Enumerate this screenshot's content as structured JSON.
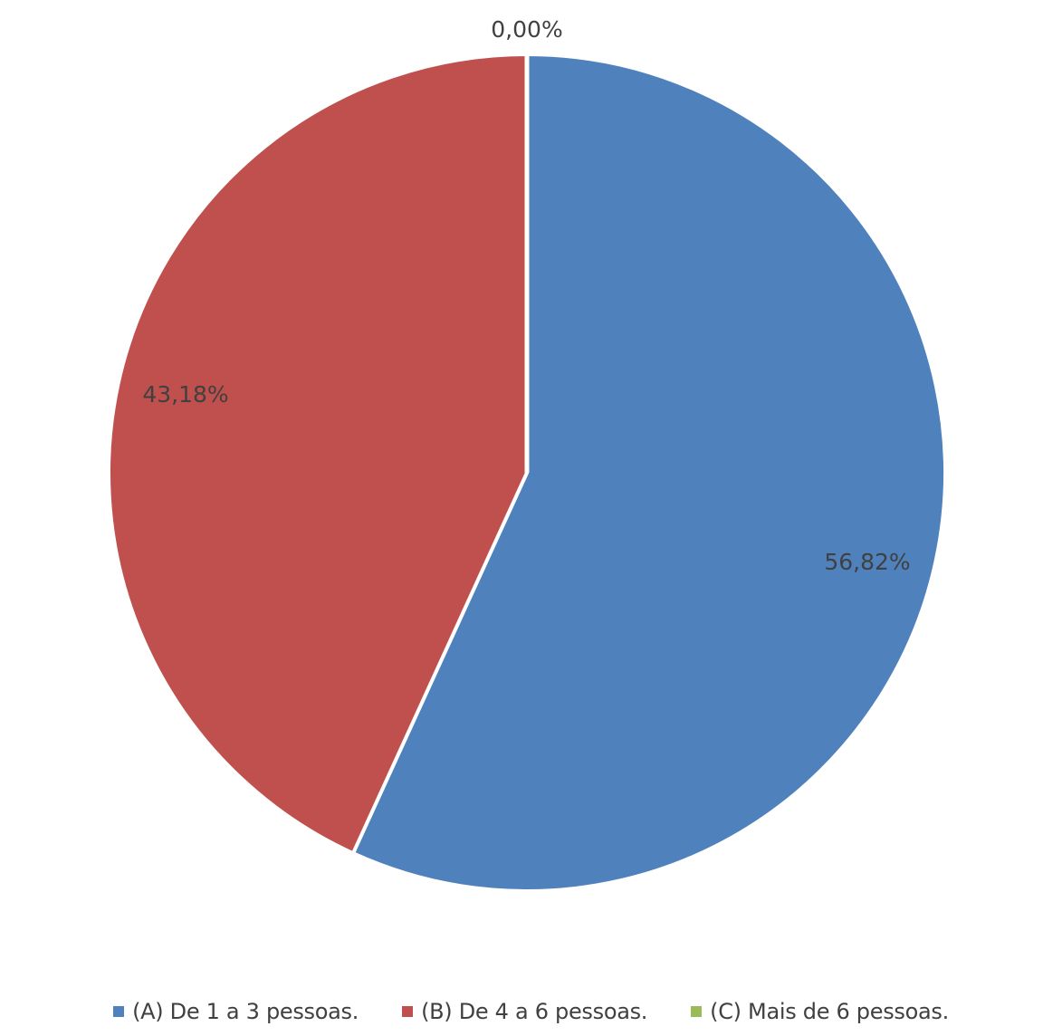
{
  "chart_data": {
    "type": "pie",
    "categories": [
      "(A) De 1 a 3 pessoas.",
      "(B) De 4 a 6 pessoas.",
      "(C) Mais de 6 pessoas."
    ],
    "values": [
      56.82,
      43.18,
      0.0
    ],
    "data_labels": [
      "56,82%",
      "43,18%",
      "0,00%"
    ],
    "colors": [
      "#4f81bd",
      "#c0504d",
      "#9bbb59"
    ],
    "start_angle_deg": 0,
    "direction": "clockwise",
    "legend_position": "bottom",
    "title": ""
  },
  "legend": {
    "items": [
      {
        "label": "(A) De 1 a 3 pessoas.",
        "color": "#4f81bd"
      },
      {
        "label": "(B) De 4 a 6 pessoas.",
        "color": "#c0504d"
      },
      {
        "label": "(C) Mais de 6 pessoas.",
        "color": "#9bbb59"
      }
    ]
  }
}
